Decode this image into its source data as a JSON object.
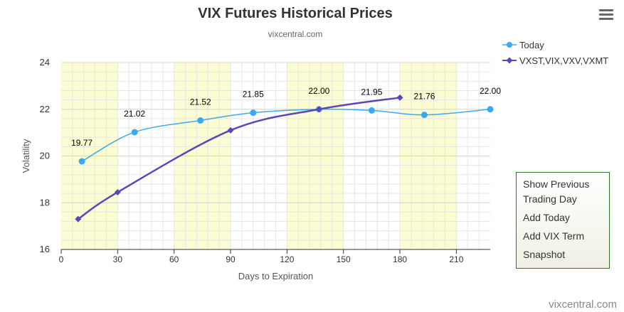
{
  "chart": {
    "title": "VIX Futures Historical Prices",
    "subtitle": "vixcentral.com",
    "credit": "vixcentral.com",
    "menu_icon": "hamburger-menu-icon"
  },
  "context_menu": {
    "items": [
      "Show Previous Trading Day",
      "Add Today",
      "Add VIX Term",
      "Snapshot"
    ]
  },
  "chart_data": {
    "type": "line",
    "title": "VIX Futures Historical Prices",
    "subtitle": "vixcentral.com",
    "xlabel": "Days to Expiration",
    "ylabel": "Volatility",
    "xlim": [
      0,
      228
    ],
    "ylim": [
      16,
      24
    ],
    "x_ticks": [
      0,
      30,
      60,
      90,
      120,
      150,
      180,
      210
    ],
    "y_ticks": [
      16,
      18,
      20,
      22,
      24
    ],
    "grid": true,
    "legend": "top-right",
    "bands": [
      [
        0,
        30
      ],
      [
        60,
        90
      ],
      [
        120,
        150
      ],
      [
        180,
        210
      ]
    ],
    "band_color": "#fcfcd2",
    "series": [
      {
        "name": "Today",
        "color": "#3aaaf0",
        "marker": "circle",
        "data_labels": true,
        "points": [
          [
            11,
            19.77
          ],
          [
            39,
            21.02
          ],
          [
            74,
            21.52
          ],
          [
            102,
            21.85
          ],
          [
            137,
            22.0
          ],
          [
            165,
            21.95
          ],
          [
            193,
            21.76
          ],
          [
            228,
            22.0
          ]
        ]
      },
      {
        "name": "VXST,VIX,VXV,VXMT",
        "color": "#5a46b4",
        "marker": "diamond",
        "data_labels": false,
        "points": [
          [
            9,
            17.3
          ],
          [
            30,
            18.45
          ],
          [
            90,
            21.1
          ],
          [
            137,
            22.0
          ],
          [
            180,
            22.5
          ]
        ]
      }
    ]
  }
}
